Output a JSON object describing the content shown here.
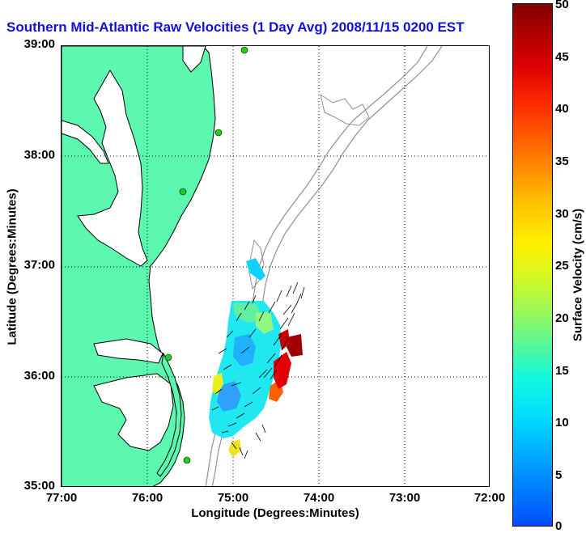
{
  "title": "Southern Mid-Atlantic Raw Velocities (1 Day Avg) 2008/11/15 0200 EST",
  "axes": {
    "xlabel": "Longitude (Degrees:Minutes)",
    "ylabel": "Latitude (Degrees:Minutes)",
    "xticks": [
      "77:00",
      "76:00",
      "75:00",
      "74:00",
      "73:00",
      "72:00"
    ],
    "yticks": [
      "39:00",
      "38:00",
      "37:00",
      "36:00",
      "35:00"
    ],
    "xlim": [
      -77,
      -72
    ],
    "ylim": [
      35,
      39
    ],
    "grid": "dotted"
  },
  "colorbar": {
    "label": "Surface Velocity (cm/s)",
    "ticks": [
      "50",
      "45",
      "40",
      "35",
      "30",
      "25",
      "20",
      "15",
      "10",
      "5",
      "0"
    ],
    "range": [
      0,
      50
    ],
    "colormap": "jet"
  },
  "colors": {
    "land": "#5cf8b0",
    "title": "#1010e0",
    "stations": "#20d020",
    "bathymetry": "#909090"
  },
  "stations": [
    {
      "lon": -74.85,
      "lat": 38.95
    },
    {
      "lon": -75.15,
      "lat": 38.2
    },
    {
      "lon": -75.55,
      "lat": 37.7
    },
    {
      "lon": -75.7,
      "lat": 36.2
    },
    {
      "lon": -75.5,
      "lat": 35.25
    }
  ]
}
